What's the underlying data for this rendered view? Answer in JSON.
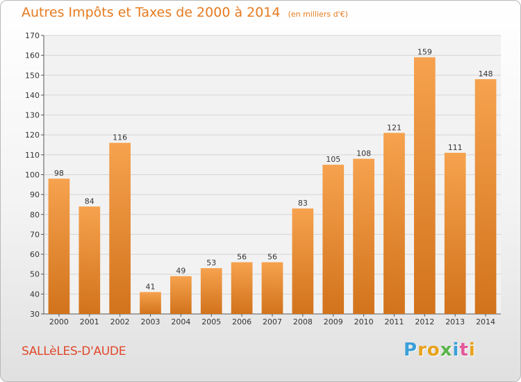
{
  "title": "Autres Impôts et Taxes de 2000 à 2014",
  "unit": "(en milliers d'€)",
  "place": "SALLèLES-D'AUDE",
  "logo": {
    "text": "Proxiti",
    "letters": [
      {
        "ch": "P",
        "color": "#3aa0d8"
      },
      {
        "ch": "r",
        "color": "#e8a21c"
      },
      {
        "ch": "o",
        "color": "#e8a21c"
      },
      {
        "ch": "x",
        "color": "#5ab54a"
      },
      {
        "ch": "i",
        "color": "#3aa0d8"
      },
      {
        "ch": "t",
        "color": "#e25a9a"
      },
      {
        "ch": "i",
        "color": "#e8a21c"
      }
    ]
  },
  "colors": {
    "bar_light": "#f6a24e",
    "bar_dark": "#d2731c",
    "accent": "#e67a1e",
    "axis_text": "#333333",
    "grid": "#d4d4d4"
  },
  "chart_data": {
    "type": "bar",
    "categories": [
      "2000",
      "2001",
      "2002",
      "2003",
      "2004",
      "2005",
      "2006",
      "2007",
      "2008",
      "2009",
      "2010",
      "2011",
      "2012",
      "2013",
      "2014"
    ],
    "values": [
      98,
      84,
      116,
      41,
      49,
      53,
      56,
      56,
      83,
      105,
      108,
      121,
      159,
      111,
      148
    ],
    "ylim": [
      30,
      170
    ],
    "yticks": [
      30,
      40,
      50,
      60,
      70,
      80,
      90,
      100,
      110,
      120,
      130,
      140,
      150,
      160,
      170
    ],
    "grid": true,
    "data_labels": true
  }
}
